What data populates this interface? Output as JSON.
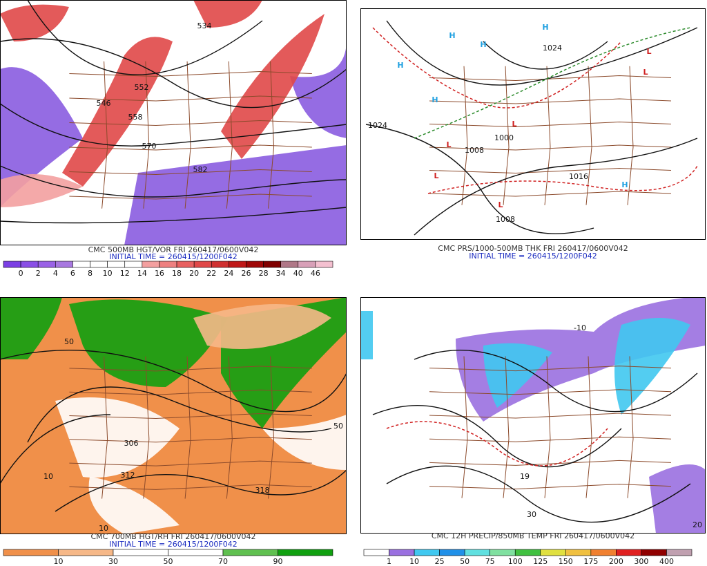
{
  "panels": [
    {
      "title": "CMC 500MB HGT/VOR FRI 260417/0600V042",
      "initial_time": "INITIAL TIME = 260415/1200F042",
      "map_labels": [
        "534",
        "552",
        "558",
        "570",
        "582",
        "546"
      ],
      "colorbar": {
        "labels": [
          0,
          2,
          4,
          6,
          8,
          10,
          12,
          14,
          16,
          18,
          20,
          22,
          24,
          26,
          28,
          34,
          40,
          46
        ],
        "colors": [
          "#7b3fe4",
          "#8a4fe6",
          "#9a62e6",
          "#a878e0",
          "#ffffff",
          "#ffffff",
          "#ffffff",
          "#ffffff",
          "#f3a0a0",
          "#ee8080",
          "#e86060",
          "#e04848",
          "#d03030",
          "#c01818",
          "#a00808",
          "#800000",
          "#b07888",
          "#d8a0b8",
          "#f4c0d0"
        ]
      }
    },
    {
      "title": "CMC PRS/1000-500MB THK FRI 260417/0600V042",
      "initial_time": "INITIAL TIME = 260415/1200F042",
      "map_labels": [
        "1024",
        "1008",
        "1016",
        "1000",
        "1008",
        "1024"
      ],
      "centers": [
        "H",
        "H",
        "H",
        "H",
        "H",
        "H",
        "L",
        "L",
        "L",
        "L",
        "L",
        "L"
      ]
    },
    {
      "title": "CMC 700MB HGT/RH FRI 260417/0600V042",
      "initial_time": "INITIAL TIME = 260415/1200F042",
      "map_labels": [
        "50",
        "10",
        "306",
        "318",
        "312",
        "50",
        "10"
      ],
      "colorbar": {
        "labels": [
          10,
          30,
          50,
          70,
          90
        ],
        "colors": [
          "#f0904a",
          "#f6b888",
          "#ffffff",
          "#ffffff",
          "#60c050",
          "#10a010"
        ]
      }
    },
    {
      "title": "CMC 12H PRECIP/850MB TEMP FRI 260417/0600V042",
      "map_labels": [
        "-10",
        "19",
        "30",
        "20"
      ],
      "colorbar": {
        "labels": [
          1,
          10,
          25,
          50,
          75,
          100,
          125,
          150,
          175,
          200,
          300,
          400
        ],
        "colors": [
          "#ffffff",
          "#9a70e0",
          "#40c8f0",
          "#2090e8",
          "#60e0e0",
          "#80e0a0",
          "#40c040",
          "#e0e040",
          "#f0c040",
          "#f08030",
          "#e02020",
          "#900000",
          "#c0a0b0"
        ]
      }
    }
  ]
}
